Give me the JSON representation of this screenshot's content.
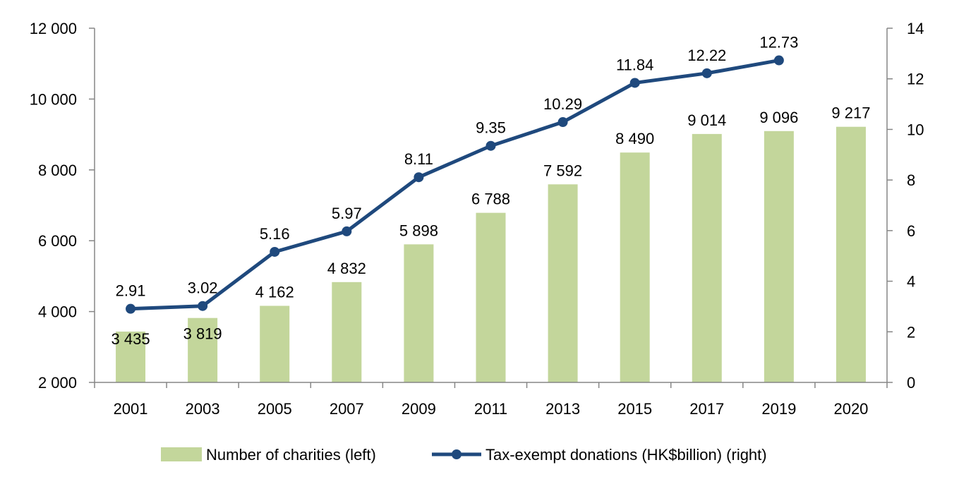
{
  "chart_data": {
    "type": "bar+line",
    "categories": [
      "2001",
      "2003",
      "2005",
      "2007",
      "2009",
      "2011",
      "2013",
      "2015",
      "2017",
      "2019",
      "2020"
    ],
    "series": [
      {
        "name": "Number of charities (left)",
        "type": "bar",
        "axis": "left",
        "values": [
          3435,
          3819,
          4162,
          4832,
          5898,
          6788,
          7592,
          8490,
          9014,
          9096,
          9217
        ],
        "labels": [
          "3 435",
          "3 819",
          "4 162",
          "4 832",
          "5 898",
          "6 788",
          "7 592",
          "8 490",
          "9 014",
          "9 096",
          "9 217"
        ],
        "color": "#c3d69b"
      },
      {
        "name": "Tax-exempt donations (HK$billion) (right)",
        "type": "line",
        "axis": "right",
        "values": [
          2.91,
          3.02,
          5.16,
          5.97,
          8.11,
          9.35,
          10.29,
          11.84,
          12.22,
          12.73,
          null
        ],
        "labels": [
          "2.91",
          "3.02",
          "5.16",
          "5.97",
          "8.11",
          "9.35",
          "10.29",
          "11.84",
          "12.22",
          "12.73",
          ""
        ],
        "color": "#1f497d"
      }
    ],
    "left_axis": {
      "range": [
        2000,
        12000
      ],
      "ticks": [
        "2 000",
        "4 000",
        "6 000",
        "8 000",
        "10 000",
        "12 000"
      ],
      "tick_values": [
        2000,
        4000,
        6000,
        8000,
        10000,
        12000
      ]
    },
    "right_axis": {
      "range": [
        0,
        14
      ],
      "ticks": [
        "0",
        "2",
        "4",
        "6",
        "8",
        "10",
        "12",
        "14"
      ],
      "tick_values": [
        0,
        2,
        4,
        6,
        8,
        10,
        12,
        14
      ]
    },
    "grid": false,
    "legend": "bottom",
    "title": "",
    "xlabel": "",
    "ylabel": ""
  }
}
